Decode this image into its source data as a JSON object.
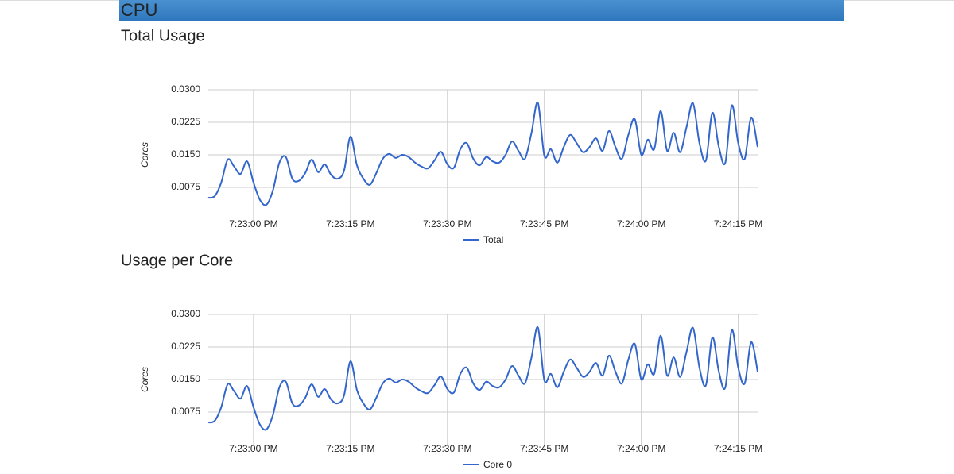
{
  "header": {
    "title": "CPU"
  },
  "chart_data": [
    {
      "type": "line",
      "title": "Total Usage",
      "y_label": "Cores",
      "x": [
        "7:22:53 PM",
        "7:22:54 PM",
        "7:22:55 PM",
        "7:22:56 PM",
        "7:22:57 PM",
        "7:22:58 PM",
        "7:22:59 PM",
        "7:23:00 PM",
        "7:23:01 PM",
        "7:23:02 PM",
        "7:23:03 PM",
        "7:23:04 PM",
        "7:23:05 PM",
        "7:23:06 PM",
        "7:23:07 PM",
        "7:23:08 PM",
        "7:23:09 PM",
        "7:23:10 PM",
        "7:23:11 PM",
        "7:23:12 PM",
        "7:23:13 PM",
        "7:23:14 PM",
        "7:23:15 PM",
        "7:23:16 PM",
        "7:23:17 PM",
        "7:23:18 PM",
        "7:23:19 PM",
        "7:23:20 PM",
        "7:23:21 PM",
        "7:23:22 PM",
        "7:23:23 PM",
        "7:23:24 PM",
        "7:23:25 PM",
        "7:23:26 PM",
        "7:23:27 PM",
        "7:23:28 PM",
        "7:23:29 PM",
        "7:23:30 PM",
        "7:23:31 PM",
        "7:23:32 PM",
        "7:23:33 PM",
        "7:23:34 PM",
        "7:23:35 PM",
        "7:23:36 PM",
        "7:23:37 PM",
        "7:23:38 PM",
        "7:23:39 PM",
        "7:23:40 PM",
        "7:23:41 PM",
        "7:23:42 PM",
        "7:23:43 PM",
        "7:23:44 PM",
        "7:23:45 PM",
        "7:23:46 PM",
        "7:23:47 PM",
        "7:23:48 PM",
        "7:23:49 PM",
        "7:23:50 PM",
        "7:23:51 PM",
        "7:23:52 PM",
        "7:23:53 PM",
        "7:23:54 PM",
        "7:23:55 PM",
        "7:23:56 PM",
        "7:23:57 PM",
        "7:23:58 PM",
        "7:23:59 PM",
        "7:24:00 PM",
        "7:24:01 PM",
        "7:24:02 PM",
        "7:24:03 PM",
        "7:24:04 PM",
        "7:24:05 PM",
        "7:24:06 PM",
        "7:24:07 PM",
        "7:24:08 PM",
        "7:24:09 PM",
        "7:24:10 PM",
        "7:24:11 PM",
        "7:24:12 PM",
        "7:24:13 PM",
        "7:24:14 PM",
        "7:24:15 PM",
        "7:24:16 PM",
        "7:24:17 PM",
        "7:24:18 PM"
      ],
      "series": [
        {
          "name": "Total",
          "color": "#3366cc",
          "values": [
            0.0051,
            0.0055,
            0.0086,
            0.0139,
            0.0123,
            0.0106,
            0.0135,
            0.0086,
            0.0046,
            0.0035,
            0.0068,
            0.0132,
            0.0145,
            0.0095,
            0.009,
            0.0108,
            0.0139,
            0.011,
            0.0128,
            0.0104,
            0.0095,
            0.0113,
            0.0192,
            0.0126,
            0.0095,
            0.0081,
            0.0108,
            0.0141,
            0.0152,
            0.0143,
            0.015,
            0.0145,
            0.0132,
            0.0123,
            0.0119,
            0.0137,
            0.0157,
            0.0128,
            0.012,
            0.0163,
            0.0177,
            0.0141,
            0.0126,
            0.0145,
            0.0135,
            0.0132,
            0.015,
            0.0181,
            0.0159,
            0.0141,
            0.02,
            0.027,
            0.0148,
            0.0163,
            0.0132,
            0.0168,
            0.0196,
            0.0177,
            0.0156,
            0.0168,
            0.0188,
            0.0159,
            0.0205,
            0.0168,
            0.0141,
            0.0196,
            0.0232,
            0.015,
            0.0185,
            0.0163,
            0.0251,
            0.0159,
            0.0201,
            0.0156,
            0.0214,
            0.0269,
            0.0177,
            0.0137,
            0.0247,
            0.0168,
            0.0132,
            0.0264,
            0.0177,
            0.0141,
            0.0236,
            0.0168
          ]
        }
      ],
      "xlim": [
        "7:22:53 PM",
        "7:24:18 PM"
      ],
      "xticks": [
        "7:23:00 PM",
        "7:23:15 PM",
        "7:23:30 PM",
        "7:23:45 PM",
        "7:24:00 PM",
        "7:24:15 PM"
      ],
      "ylim": [
        0,
        0.03
      ],
      "yticks": [
        {
          "value": 0.0075,
          "label": "0.0075"
        },
        {
          "value": 0.015,
          "label": "0.0150"
        },
        0.0225,
        {
          "value": 0.03,
          "label": "0.0300"
        }
      ],
      "grid": true,
      "legend": "bottom"
    },
    {
      "type": "line",
      "title": "Usage per Core",
      "y_label": "Cores",
      "x": [
        "7:22:53 PM",
        "7:22:54 PM",
        "7:22:55 PM",
        "7:22:56 PM",
        "7:22:57 PM",
        "7:22:58 PM",
        "7:22:59 PM",
        "7:23:00 PM",
        "7:23:01 PM",
        "7:23:02 PM",
        "7:23:03 PM",
        "7:23:04 PM",
        "7:23:05 PM",
        "7:23:06 PM",
        "7:23:07 PM",
        "7:23:08 PM",
        "7:23:09 PM",
        "7:23:10 PM",
        "7:23:11 PM",
        "7:23:12 PM",
        "7:23:13 PM",
        "7:23:14 PM",
        "7:23:15 PM",
        "7:23:16 PM",
        "7:23:17 PM",
        "7:23:18 PM",
        "7:23:19 PM",
        "7:23:20 PM",
        "7:23:21 PM",
        "7:23:22 PM",
        "7:23:23 PM",
        "7:23:24 PM",
        "7:23:25 PM",
        "7:23:26 PM",
        "7:23:27 PM",
        "7:23:28 PM",
        "7:23:29 PM",
        "7:23:30 PM",
        "7:23:31 PM",
        "7:23:32 PM",
        "7:23:33 PM",
        "7:23:34 PM",
        "7:23:35 PM",
        "7:23:36 PM",
        "7:23:37 PM",
        "7:23:38 PM",
        "7:23:39 PM",
        "7:23:40 PM",
        "7:23:41 PM",
        "7:23:42 PM",
        "7:23:43 PM",
        "7:23:44 PM",
        "7:23:45 PM",
        "7:23:46 PM",
        "7:23:47 PM",
        "7:23:48 PM",
        "7:23:49 PM",
        "7:23:50 PM",
        "7:23:51 PM",
        "7:23:52 PM",
        "7:23:53 PM",
        "7:23:54 PM",
        "7:23:55 PM",
        "7:23:56 PM",
        "7:23:57 PM",
        "7:23:58 PM",
        "7:23:59 PM",
        "7:24:00 PM",
        "7:24:01 PM",
        "7:24:02 PM",
        "7:24:03 PM",
        "7:24:04 PM",
        "7:24:05 PM",
        "7:24:06 PM",
        "7:24:07 PM",
        "7:24:08 PM",
        "7:24:09 PM",
        "7:24:10 PM",
        "7:24:11 PM",
        "7:24:12 PM",
        "7:24:13 PM",
        "7:24:14 PM",
        "7:24:15 PM",
        "7:24:16 PM",
        "7:24:17 PM",
        "7:24:18 PM"
      ],
      "series": [
        {
          "name": "Core 0",
          "color": "#3366cc",
          "values": [
            0.0051,
            0.0055,
            0.0086,
            0.0139,
            0.0123,
            0.0106,
            0.0135,
            0.0086,
            0.0046,
            0.0035,
            0.0068,
            0.0132,
            0.0145,
            0.0095,
            0.009,
            0.0108,
            0.0139,
            0.011,
            0.0128,
            0.0104,
            0.0095,
            0.0113,
            0.0192,
            0.0126,
            0.0095,
            0.0081,
            0.0108,
            0.0141,
            0.0152,
            0.0143,
            0.015,
            0.0145,
            0.0132,
            0.0123,
            0.0119,
            0.0137,
            0.0157,
            0.0128,
            0.012,
            0.0163,
            0.0177,
            0.0141,
            0.0126,
            0.0145,
            0.0135,
            0.0132,
            0.015,
            0.0181,
            0.0159,
            0.0141,
            0.02,
            0.027,
            0.0148,
            0.0163,
            0.0132,
            0.0168,
            0.0196,
            0.0177,
            0.0156,
            0.0168,
            0.0188,
            0.0159,
            0.0205,
            0.0168,
            0.0141,
            0.0196,
            0.0232,
            0.015,
            0.0185,
            0.0163,
            0.0251,
            0.0159,
            0.0201,
            0.0156,
            0.0214,
            0.0269,
            0.0177,
            0.0137,
            0.0247,
            0.0168,
            0.0132,
            0.0264,
            0.0177,
            0.0141,
            0.0236,
            0.0168
          ]
        }
      ],
      "xlim": [
        "7:22:53 PM",
        "7:24:18 PM"
      ],
      "xticks": [
        "7:23:00 PM",
        "7:23:15 PM",
        "7:23:30 PM",
        "7:23:45 PM",
        "7:24:00 PM",
        "7:24:15 PM"
      ],
      "ylim": [
        0,
        0.03
      ],
      "yticks": [
        {
          "value": 0.0075,
          "label": "0.0075"
        },
        {
          "value": 0.015,
          "label": "0.0150"
        },
        0.0225,
        {
          "value": 0.03,
          "label": "0.0300"
        }
      ],
      "grid": true,
      "legend": "bottom"
    }
  ]
}
